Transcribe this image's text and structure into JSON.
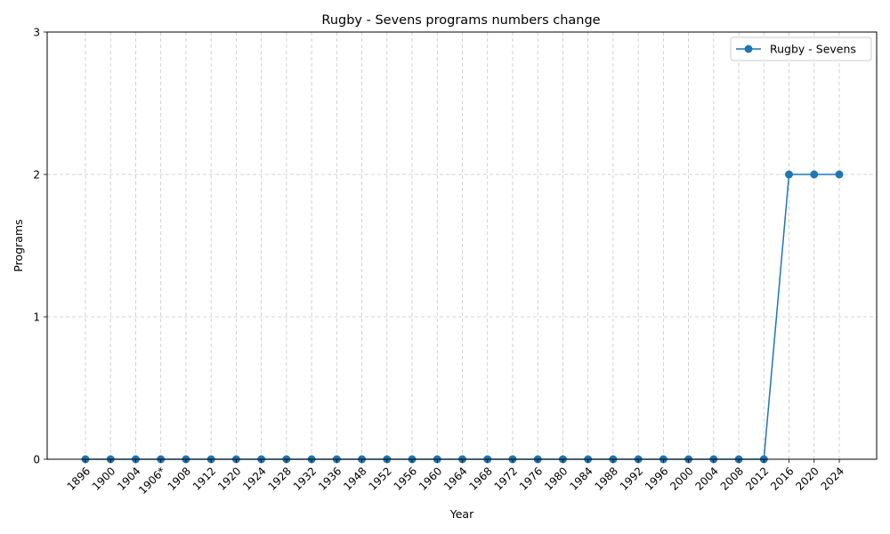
{
  "chart_data": {
    "type": "line",
    "title": "Rugby - Sevens programs numbers change",
    "xlabel": "Year",
    "ylabel": "Programs",
    "categories": [
      "1896",
      "1900",
      "1904",
      "1906*",
      "1908",
      "1912",
      "1920",
      "1924",
      "1928",
      "1932",
      "1936",
      "1948",
      "1952",
      "1956",
      "1960",
      "1964",
      "1968",
      "1972",
      "1976",
      "1980",
      "1984",
      "1988",
      "1992",
      "1996",
      "2000",
      "2004",
      "2008",
      "2012",
      "2016",
      "2020",
      "2024"
    ],
    "series": [
      {
        "name": "Rugby - Sevens",
        "values": [
          0,
          0,
          0,
          0,
          0,
          0,
          0,
          0,
          0,
          0,
          0,
          0,
          0,
          0,
          0,
          0,
          0,
          0,
          0,
          0,
          0,
          0,
          0,
          0,
          0,
          0,
          0,
          0,
          2,
          2,
          2
        ],
        "color": "#1f77b4"
      }
    ],
    "ylim": [
      0,
      3
    ],
    "yticks": [
      0,
      1,
      2,
      3
    ],
    "grid": true,
    "legend_position": "top-right"
  }
}
